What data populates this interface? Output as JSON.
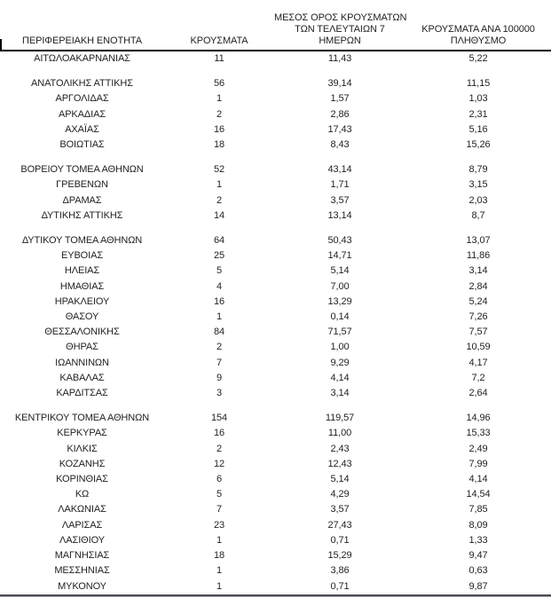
{
  "colors": {
    "background": "#ffffff",
    "text": "#1f1f1f",
    "header_rule": "#000000",
    "bottom_rule_dark": "#4a4a55",
    "bottom_rule_light": "#a6a6ae"
  },
  "table": {
    "columns": [
      {
        "id": "region",
        "lines": [
          "ΠΕΡΙΦΕΡΕΙΑΚΗ ΕΝΟΤΗΤΑ"
        ]
      },
      {
        "id": "cases",
        "lines": [
          "ΚΡΟΥΣΜΑΤΑ"
        ]
      },
      {
        "id": "avg7",
        "lines": [
          "ΜΕΣΟΣ ΟΡΟΣ ΚΡΟΥΣΜΑΤΩΝ",
          "ΤΩΝ ΤΕΛΕΥΤΑΙΩΝ 7",
          "ΗΜΕΡΩΝ"
        ]
      },
      {
        "id": "per100k",
        "lines": [
          "ΚΡΟΥΣΜΑΤΑ ΑΝΑ 100000",
          "ΠΛΗΘΥΣΜΟ"
        ]
      }
    ],
    "groups": [
      [
        {
          "region": "ΑΙΤΩΛΟΑΚΑΡΝΑΝΙΑΣ",
          "cases": "11",
          "avg7": "11,43",
          "per100k": "5,22"
        }
      ],
      [
        {
          "region": "ΑΝΑΤΟΛΙΚΗΣ ΑΤΤΙΚΗΣ",
          "cases": "56",
          "avg7": "39,14",
          "per100k": "11,15"
        },
        {
          "region": "ΑΡΓΟΛΙΔΑΣ",
          "cases": "1",
          "avg7": "1,57",
          "per100k": "1,03"
        },
        {
          "region": "ΑΡΚΑΔΙΑΣ",
          "cases": "2",
          "avg7": "2,86",
          "per100k": "2,31"
        },
        {
          "region": "ΑΧΑΪΑΣ",
          "cases": "16",
          "avg7": "17,43",
          "per100k": "5,16"
        },
        {
          "region": "ΒΟΙΩΤΙΑΣ",
          "cases": "18",
          "avg7": "8,43",
          "per100k": "15,26"
        }
      ],
      [
        {
          "region": "ΒΟΡΕΙΟΥ ΤΟΜΕΑ ΑΘΗΝΩΝ",
          "cases": "52",
          "avg7": "43,14",
          "per100k": "8,79"
        },
        {
          "region": "ΓΡΕΒΕΝΩΝ",
          "cases": "1",
          "avg7": "1,71",
          "per100k": "3,15"
        },
        {
          "region": "ΔΡΑΜΑΣ",
          "cases": "2",
          "avg7": "3,57",
          "per100k": "2,03"
        },
        {
          "region": "ΔΥΤΙΚΗΣ ΑΤΤΙΚΗΣ",
          "cases": "14",
          "avg7": "13,14",
          "per100k": "8,7"
        }
      ],
      [
        {
          "region": "ΔΥΤΙΚΟΥ ΤΟΜΕΑ ΑΘΗΝΩΝ",
          "cases": "64",
          "avg7": "50,43",
          "per100k": "13,07"
        },
        {
          "region": "ΕΥΒΟΙΑΣ",
          "cases": "25",
          "avg7": "14,71",
          "per100k": "11,86"
        },
        {
          "region": "ΗΛΕΙΑΣ",
          "cases": "5",
          "avg7": "5,14",
          "per100k": "3,14"
        },
        {
          "region": "ΗΜΑΘΙΑΣ",
          "cases": "4",
          "avg7": "7,00",
          "per100k": "2,84"
        },
        {
          "region": "ΗΡΑΚΛΕΙΟΥ",
          "cases": "16",
          "avg7": "13,29",
          "per100k": "5,24"
        },
        {
          "region": "ΘΑΣΟΥ",
          "cases": "1",
          "avg7": "0,14",
          "per100k": "7,26"
        },
        {
          "region": "ΘΕΣΣΑΛΟΝΙΚΗΣ",
          "cases": "84",
          "avg7": "71,57",
          "per100k": "7,57"
        },
        {
          "region": "ΘΗΡΑΣ",
          "cases": "2",
          "avg7": "1,00",
          "per100k": "10,59"
        },
        {
          "region": "ΙΩΑΝΝΙΝΩΝ",
          "cases": "7",
          "avg7": "9,29",
          "per100k": "4,17"
        },
        {
          "region": "ΚΑΒΑΛΑΣ",
          "cases": "9",
          "avg7": "4,14",
          "per100k": "7,2"
        },
        {
          "region": "ΚΑΡΔΙΤΣΑΣ",
          "cases": "3",
          "avg7": "3,14",
          "per100k": "2,64"
        }
      ],
      [
        {
          "region": "ΚΕΝΤΡΙΚΟΥ ΤΟΜΕΑ ΑΘΗΝΩΝ",
          "cases": "154",
          "avg7": "119,57",
          "per100k": "14,96"
        },
        {
          "region": "ΚΕΡΚΥΡΑΣ",
          "cases": "16",
          "avg7": "11,00",
          "per100k": "15,33"
        },
        {
          "region": "ΚΙΛΚΙΣ",
          "cases": "2",
          "avg7": "2,43",
          "per100k": "2,49"
        },
        {
          "region": "ΚΟΖΑΝΗΣ",
          "cases": "12",
          "avg7": "12,43",
          "per100k": "7,99"
        },
        {
          "region": "ΚΟΡΙΝΘΙΑΣ",
          "cases": "6",
          "avg7": "5,14",
          "per100k": "4,14"
        },
        {
          "region": "ΚΩ",
          "cases": "5",
          "avg7": "4,29",
          "per100k": "14,54"
        },
        {
          "region": "ΛΑΚΩΝΙΑΣ",
          "cases": "7",
          "avg7": "3,57",
          "per100k": "7,85"
        },
        {
          "region": "ΛΑΡΙΣΑΣ",
          "cases": "23",
          "avg7": "27,43",
          "per100k": "8,09"
        },
        {
          "region": "ΛΑΣΙΘΙΟΥ",
          "cases": "1",
          "avg7": "0,71",
          "per100k": "1,33"
        },
        {
          "region": "ΜΑΓΝΗΣΙΑΣ",
          "cases": "18",
          "avg7": "15,29",
          "per100k": "9,47"
        },
        {
          "region": "ΜΕΣΣΗΝΙΑΣ",
          "cases": "1",
          "avg7": "3,86",
          "per100k": "0,63"
        },
        {
          "region": "ΜΥΚΟΝΟΥ",
          "cases": "1",
          "avg7": "0,71",
          "per100k": "9,87"
        }
      ]
    ]
  }
}
